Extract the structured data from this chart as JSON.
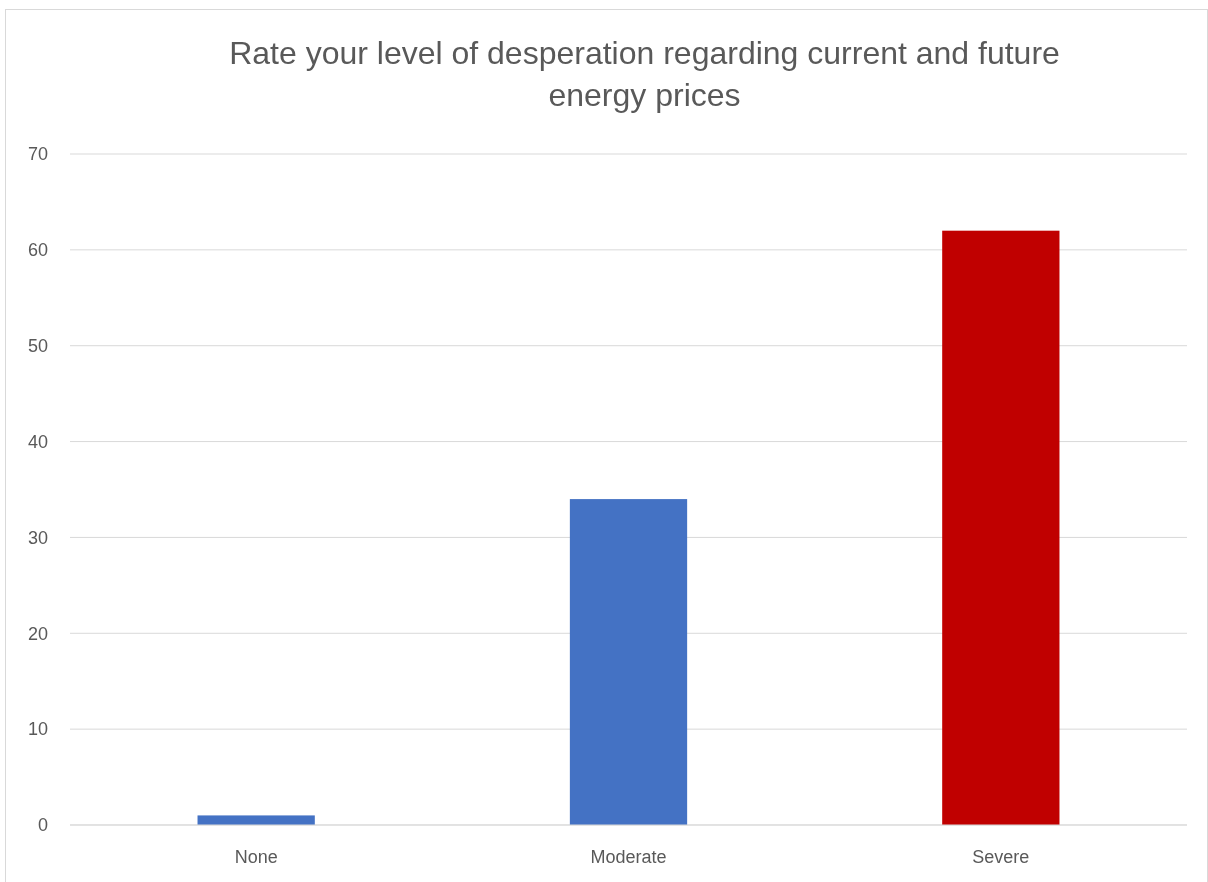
{
  "chart_data": {
    "type": "bar",
    "title": "Rate your level of desperation regarding current and future energy prices",
    "categories": [
      "None",
      "Moderate",
      "Severe"
    ],
    "values": [
      1,
      34,
      62
    ],
    "colors": [
      "#4472c4",
      "#4472c4",
      "#c00000"
    ],
    "ylim": [
      0,
      70
    ],
    "yticks": [
      0,
      10,
      20,
      30,
      40,
      50,
      60,
      70
    ],
    "grid": "y"
  }
}
